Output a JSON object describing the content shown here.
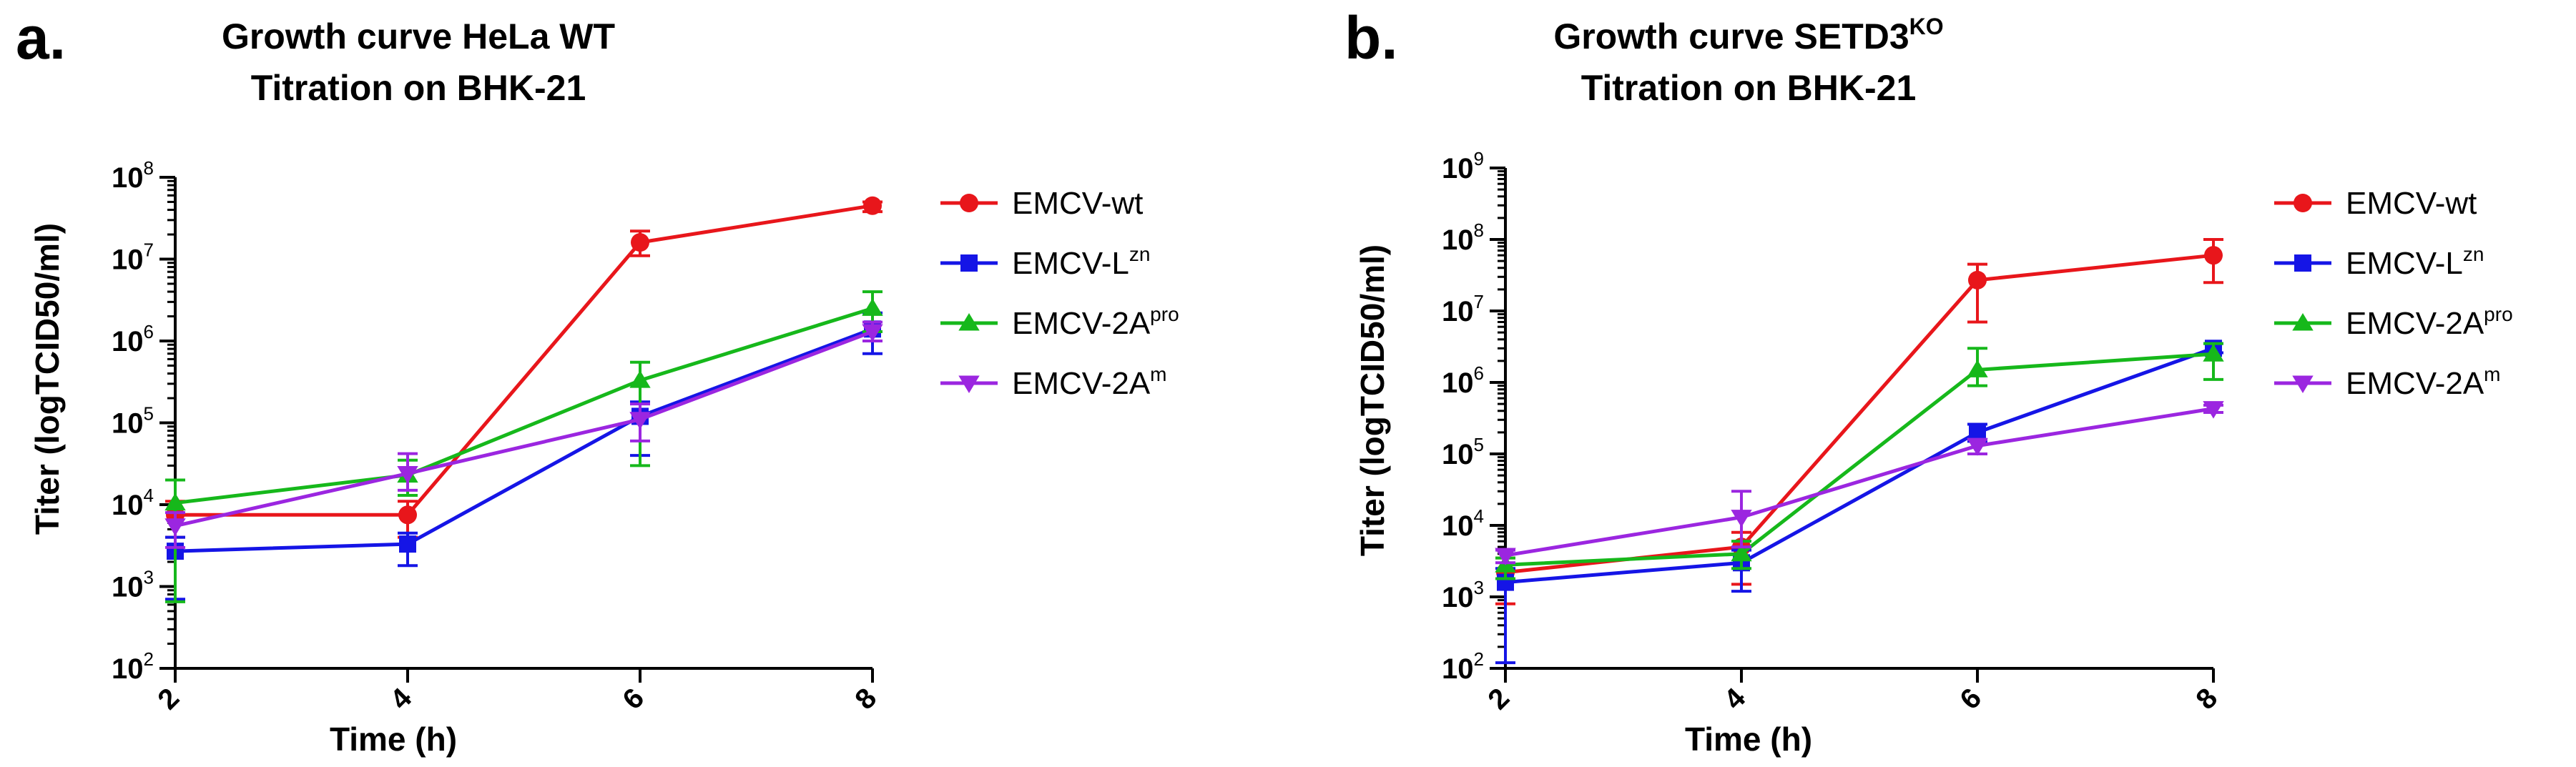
{
  "figure": {
    "panels": [
      {
        "letter": "a.",
        "title_line1": "Growth curve HeLa WT",
        "title_line1_sup": "",
        "title_line2": "Titration on BHK-21"
      },
      {
        "letter": "b.",
        "title_line1": "Growth curve SETD3",
        "title_line1_sup": "KO",
        "title_line2": "Titration on BHK-21"
      }
    ]
  },
  "chart_data": [
    {
      "type": "line",
      "title": "Growth curve HeLa WT Titration on BHK-21",
      "xlabel": "Time (h)",
      "ylabel": "Titer (logTCID50/ml)",
      "yscale": "log",
      "ylim": [
        100,
        100000000
      ],
      "x": [
        2,
        4,
        6,
        8
      ],
      "x_tick_labels": [
        "2",
        "4",
        "6",
        "8"
      ],
      "y_tick_exponents": [
        "2",
        "3",
        "4",
        "5",
        "6",
        "7",
        "8"
      ],
      "series": [
        {
          "name": "EMCV-wt",
          "label_base": "EMCV-wt",
          "label_sup": "",
          "color": "#e8161b",
          "marker": "circle",
          "values": [
            7500,
            7500,
            16000000,
            45000000
          ],
          "err_low": [
            4000,
            4000,
            11000000,
            38000000
          ],
          "err_high": [
            11000,
            11000,
            22000000,
            50000000
          ]
        },
        {
          "name": "EMCV-Lzn",
          "label_base": "EMCV-L",
          "label_sup": "zn",
          "color": "#1515e6",
          "marker": "square",
          "values": [
            2700,
            3300,
            120000,
            1400000
          ],
          "err_low": [
            700,
            1800,
            40000,
            700000
          ],
          "err_high": [
            4000,
            4500,
            180000,
            2200000
          ]
        },
        {
          "name": "EMCV-2Apro",
          "label_base": "EMCV-2A",
          "label_sup": "pro",
          "color": "#16b81b",
          "marker": "triangle-up",
          "values": [
            10500,
            23000,
            330000,
            2500000
          ],
          "err_low": [
            650,
            13000,
            30000,
            1300000
          ],
          "err_high": [
            20000,
            35000,
            550000,
            4000000
          ]
        },
        {
          "name": "EMCV-2Am",
          "label_base": "EMCV-2A",
          "label_sup": "m",
          "color": "#9b26e0",
          "marker": "triangle-down",
          "values": [
            5500,
            24000,
            110000,
            1300000
          ],
          "err_low": [
            3000,
            15000,
            60000,
            1000000
          ],
          "err_high": [
            8000,
            42000,
            170000,
            1700000
          ]
        }
      ],
      "legend": "right"
    },
    {
      "type": "line",
      "title": "Growth curve SETD3KO Titration on BHK-21",
      "xlabel": "Time (h)",
      "ylabel": "Titer (logTCID50/ml)",
      "yscale": "log",
      "ylim": [
        100,
        1000000000
      ],
      "x": [
        2,
        4,
        6,
        8
      ],
      "x_tick_labels": [
        "2",
        "4",
        "6",
        "8"
      ],
      "y_tick_exponents": [
        "2",
        "3",
        "4",
        "5",
        "6",
        "7",
        "8",
        "9"
      ],
      "series": [
        {
          "name": "EMCV-wt",
          "label_base": "EMCV-wt",
          "label_sup": "",
          "color": "#e8161b",
          "marker": "circle",
          "values": [
            2200,
            5000,
            27000000,
            60000000
          ],
          "err_low": [
            800,
            1500,
            7000000,
            25000000
          ],
          "err_high": [
            3500,
            8000,
            45000000,
            100000000
          ]
        },
        {
          "name": "EMCV-Lzn",
          "label_base": "EMCV-L",
          "label_sup": "zn",
          "color": "#1515e6",
          "marker": "square",
          "values": [
            1600,
            3000,
            200000,
            3000000
          ],
          "err_low": [
            120,
            1200,
            150000,
            2600000
          ],
          "err_high": [
            2500,
            4500,
            260000,
            3500000
          ]
        },
        {
          "name": "EMCV-2Apro",
          "label_base": "EMCV-2A",
          "label_sup": "pro",
          "color": "#16b81b",
          "marker": "triangle-up",
          "values": [
            2800,
            4000,
            1500000,
            2500000
          ],
          "err_low": [
            1800,
            2500,
            900000,
            1100000
          ],
          "err_high": [
            3500,
            6000,
            3000000,
            3500000
          ]
        },
        {
          "name": "EMCV-2Am",
          "label_base": "EMCV-2A",
          "label_sup": "m",
          "color": "#9b26e0",
          "marker": "triangle-down",
          "values": [
            3800,
            13000,
            130000,
            430000
          ],
          "err_low": [
            3000,
            5000,
            100000,
            380000
          ],
          "err_high": [
            4500,
            30000,
            160000,
            480000
          ]
        }
      ],
      "legend": "right"
    }
  ]
}
